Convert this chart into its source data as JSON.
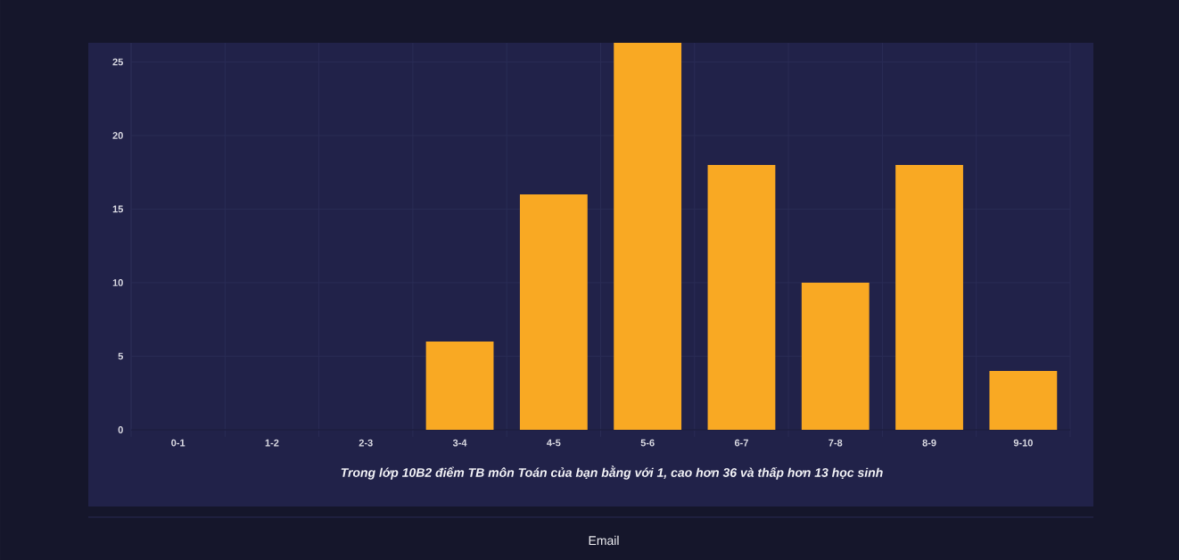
{
  "chart_data": {
    "type": "bar",
    "categories": [
      "0-1",
      "1-2",
      "2-3",
      "3-4",
      "4-5",
      "5-6",
      "6-7",
      "7-8",
      "8-9",
      "9-10"
    ],
    "values": [
      0,
      0,
      0,
      6,
      16,
      26.3,
      18,
      10,
      18,
      4
    ],
    "color": "#f9a923",
    "ylim": [
      0,
      26.3
    ],
    "yticks": [
      0,
      5,
      10,
      15,
      20,
      25
    ],
    "grid": true,
    "annotations": [
      "Trong lớp 10B2 điểm TB môn Toán của bạn bằng với 1, cao hơn 36 và thấp hơn 13 học sinh",
      "Email"
    ]
  }
}
